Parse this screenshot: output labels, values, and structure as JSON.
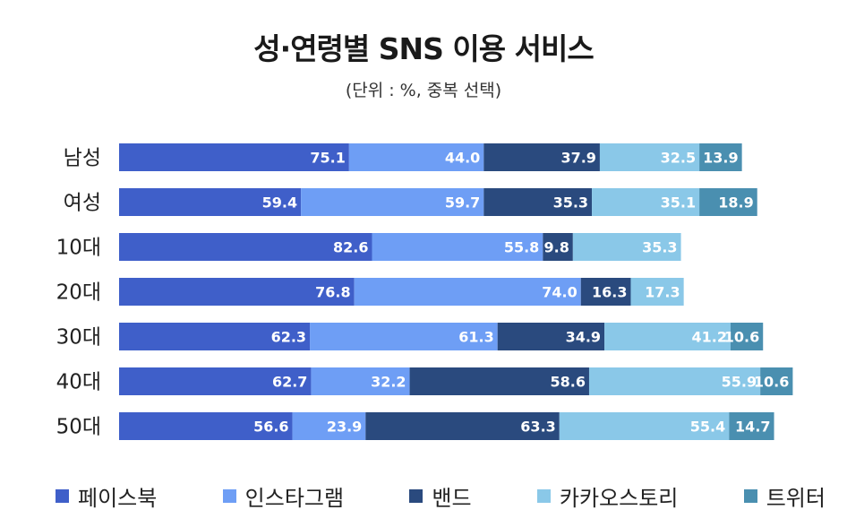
{
  "chart_data": {
    "type": "bar",
    "orientation": "horizontal",
    "stacked": true,
    "title": "성·연령별 SNS 이용 서비스",
    "subtitle": "(단위 : %, 중복 선택)",
    "categories": [
      "남성",
      "여성",
      "10대",
      "20대",
      "30대",
      "40대",
      "50대"
    ],
    "series": [
      {
        "name": "페이스북",
        "color": "#3f5fc9",
        "values": [
          75.1,
          59.4,
          82.6,
          76.8,
          62.3,
          62.7,
          56.6
        ]
      },
      {
        "name": "인스타그램",
        "color": "#6e9ef5",
        "values": [
          44.0,
          59.7,
          55.8,
          74.0,
          61.3,
          32.2,
          23.9
        ]
      },
      {
        "name": "밴드",
        "color": "#2a4a7e",
        "values": [
          37.9,
          35.3,
          9.8,
          16.3,
          34.9,
          58.6,
          63.3
        ]
      },
      {
        "name": "카카오스토리",
        "color": "#8ac8e8",
        "values": [
          32.5,
          35.1,
          35.3,
          17.3,
          41.2,
          55.9,
          55.4
        ]
      },
      {
        "name": "트위터",
        "color": "#4a8fb0",
        "values": [
          13.9,
          18.9,
          0,
          0,
          10.6,
          10.6,
          14.7
        ]
      }
    ],
    "legend_position": "bottom",
    "grid": false
  }
}
